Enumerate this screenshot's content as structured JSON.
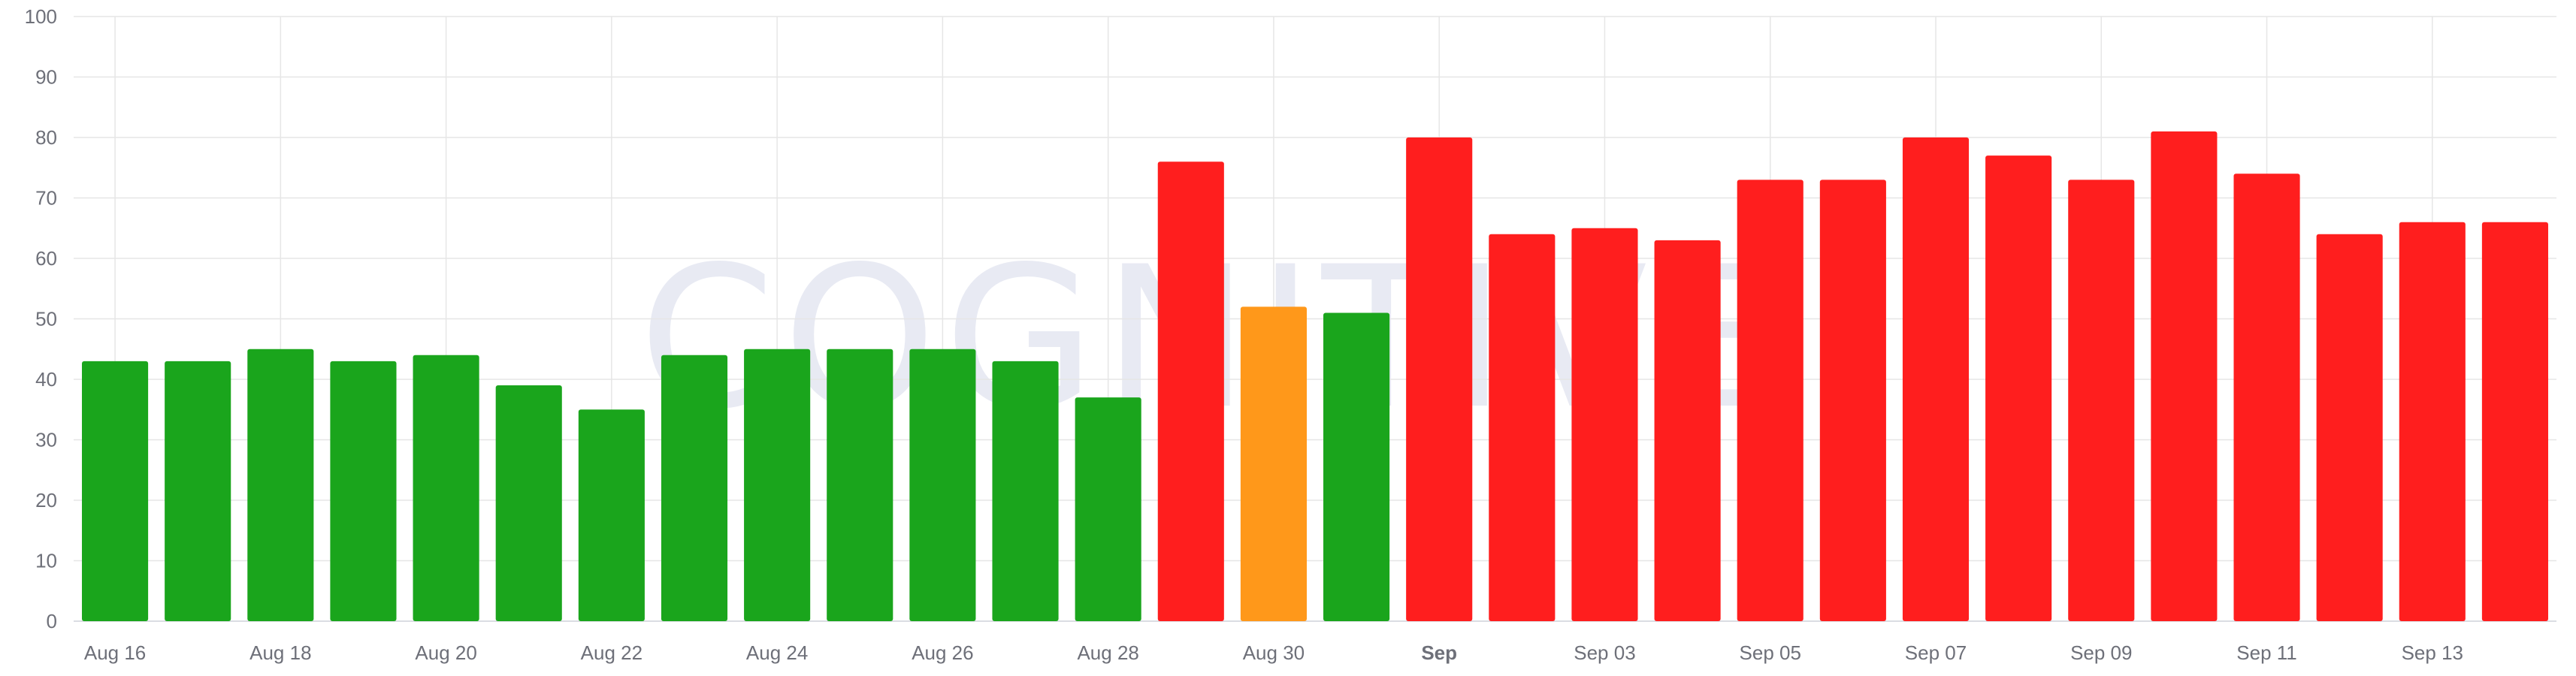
{
  "chart_data": {
    "type": "bar",
    "watermark": "COGNITIVE",
    "categories": [
      "Aug 16",
      "Aug 17",
      "Aug 18",
      "Aug 19",
      "Aug 20",
      "Aug 21",
      "Aug 22",
      "Aug 23",
      "Aug 24",
      "Aug 25",
      "Aug 26",
      "Aug 27",
      "Aug 28",
      "Aug 29",
      "Aug 30",
      "Aug 31",
      "Sep",
      "Sep 02",
      "Sep 03",
      "Sep 04",
      "Sep 05",
      "Sep 06",
      "Sep 07",
      "Sep 08",
      "Sep 09",
      "Sep 10",
      "Sep 11",
      "Sep 12",
      "Sep 13",
      "Sep 14"
    ],
    "values": [
      43,
      43,
      45,
      43,
      44,
      39,
      35,
      44,
      45,
      45,
      45,
      43,
      37,
      76,
      52,
      51,
      80,
      64,
      65,
      63,
      73,
      73,
      80,
      77,
      73,
      81,
      74,
      64,
      66,
      66
    ],
    "bar_colors": [
      "#1aa51c",
      "#1aa51c",
      "#1aa51c",
      "#1aa51c",
      "#1aa51c",
      "#1aa51c",
      "#1aa51c",
      "#1aa51c",
      "#1aa51c",
      "#1aa51c",
      "#1aa51c",
      "#1aa51c",
      "#1aa51c",
      "#ff1e1e",
      "#ff981a",
      "#1aa51c",
      "#ff1e1e",
      "#ff1e1e",
      "#ff1e1e",
      "#ff1e1e",
      "#ff1e1e",
      "#ff1e1e",
      "#ff1e1e",
      "#ff1e1e",
      "#ff1e1e",
      "#ff1e1e",
      "#ff1e1e",
      "#ff1e1e",
      "#ff1e1e",
      "#ff1e1e"
    ],
    "x_tick_labels": [
      {
        "index": 0,
        "text": "Aug 16",
        "bold": false
      },
      {
        "index": 2,
        "text": "Aug 18",
        "bold": false
      },
      {
        "index": 4,
        "text": "Aug 20",
        "bold": false
      },
      {
        "index": 6,
        "text": "Aug 22",
        "bold": false
      },
      {
        "index": 8,
        "text": "Aug 24",
        "bold": false
      },
      {
        "index": 10,
        "text": "Aug 26",
        "bold": false
      },
      {
        "index": 12,
        "text": "Aug 28",
        "bold": false
      },
      {
        "index": 14,
        "text": "Aug 30",
        "bold": false
      },
      {
        "index": 16,
        "text": "Sep",
        "bold": true
      },
      {
        "index": 18,
        "text": "Sep 03",
        "bold": false
      },
      {
        "index": 20,
        "text": "Sep 05",
        "bold": false
      },
      {
        "index": 22,
        "text": "Sep 07",
        "bold": false
      },
      {
        "index": 24,
        "text": "Sep 09",
        "bold": false
      },
      {
        "index": 26,
        "text": "Sep 11",
        "bold": false
      },
      {
        "index": 28,
        "text": "Sep 13",
        "bold": false
      }
    ],
    "y_ticks": [
      0,
      10,
      20,
      30,
      40,
      50,
      60,
      70,
      80,
      90,
      100
    ],
    "ylim": [
      0,
      100
    ],
    "grid": true,
    "colors": {
      "green": "#1aa51c",
      "orange": "#ff981a",
      "red": "#ff1e1e",
      "grid": "#e6e6e6",
      "axis_text": "#6e7079"
    }
  }
}
